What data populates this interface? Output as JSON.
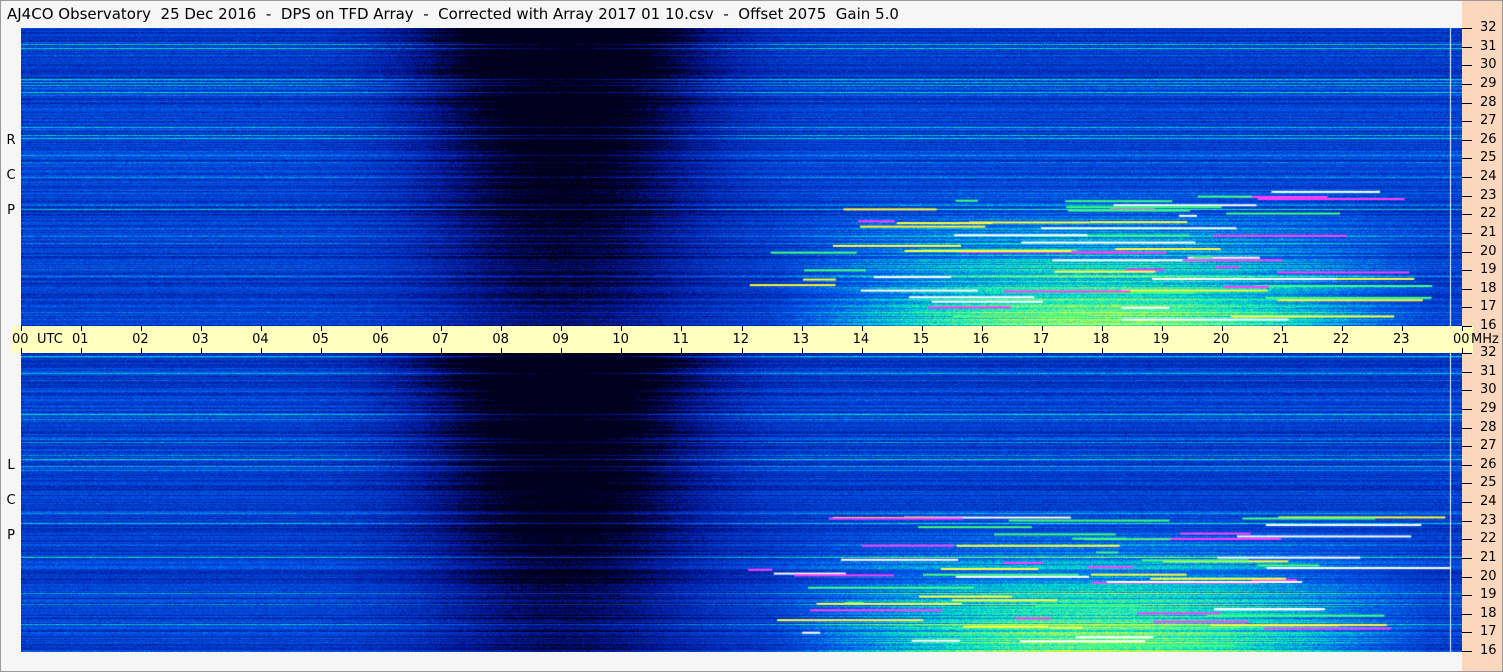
{
  "title": "AJ4CO Observatory  25 Dec 2016  -  DPS on TFD Array  -  Corrected with Array 2017 01 10.csv  -  Offset 2075  Gain 5.0",
  "chart_data": {
    "type": "heatmap",
    "panels": [
      {
        "label_letters": [
          "R",
          "C",
          "P"
        ]
      },
      {
        "label_letters": [
          "L",
          "C",
          "P"
        ]
      }
    ],
    "x_ticks": [
      "00",
      "01",
      "02",
      "03",
      "04",
      "05",
      "06",
      "07",
      "08",
      "09",
      "10",
      "11",
      "12",
      "13",
      "14",
      "15",
      "16",
      "17",
      "18",
      "19",
      "20",
      "21",
      "22",
      "23",
      "00"
    ],
    "x_unit": "UTC",
    "y_ticks": [
      "32",
      "31",
      "30",
      "29",
      "28",
      "27",
      "26",
      "25",
      "24",
      "23",
      "22",
      "21",
      "20",
      "19",
      "18",
      "17",
      "16"
    ],
    "y_unit": "MHz",
    "xlim": [
      0,
      24
    ],
    "ylim": [
      16,
      32
    ],
    "colors": {
      "low": "#000020",
      "mid": "#0050e0",
      "high": "#40ff60",
      "peak": "#ffff40",
      "saturated": "#ff40ff",
      "axis_band": "#ffffc0",
      "freq_axis": "#fbd8bd"
    }
  }
}
